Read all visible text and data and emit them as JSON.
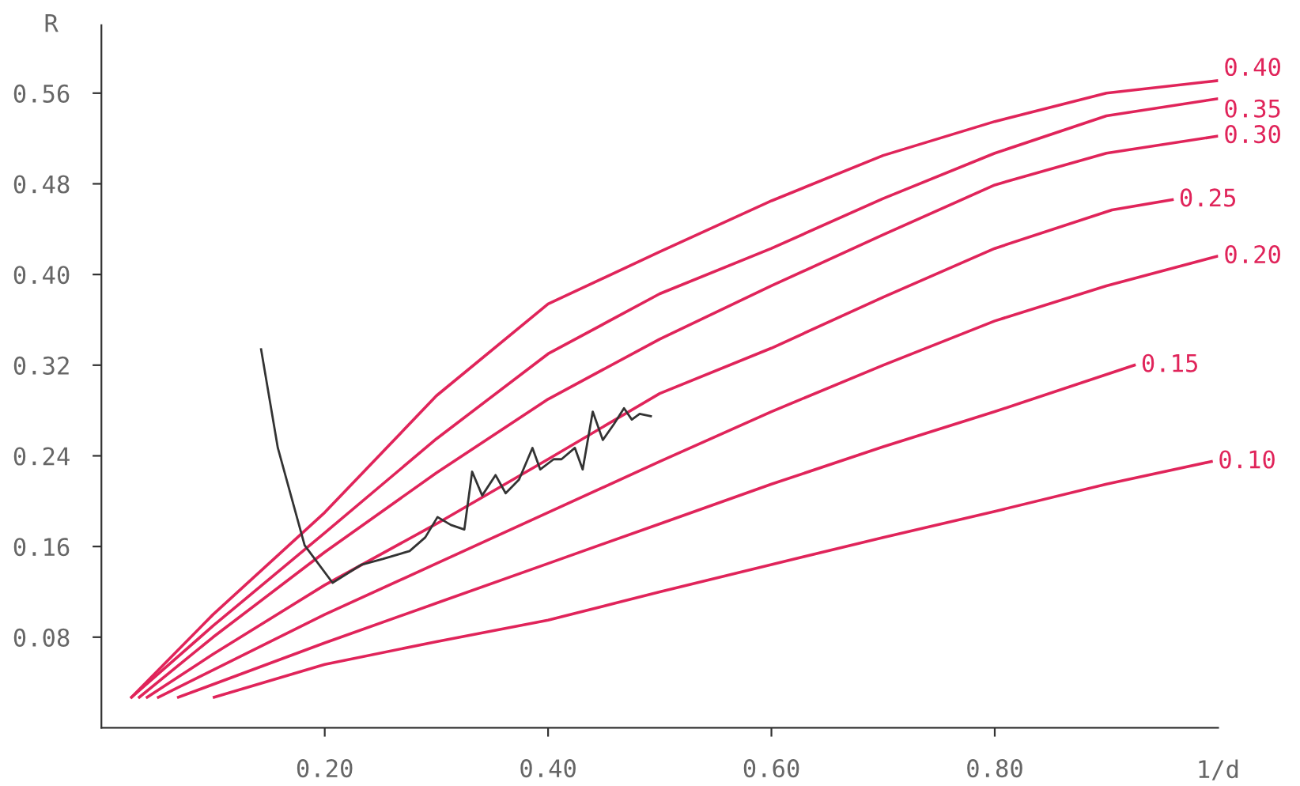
{
  "chart_data": {
    "type": "line",
    "xlabel": "1/d",
    "ylabel": "R",
    "xlim": [
      0,
      1.0
    ],
    "ylim": [
      0,
      0.62
    ],
    "xticks": [
      {
        "value": 0.2,
        "label": "0.20"
      },
      {
        "value": 0.4,
        "label": "0.40"
      },
      {
        "value": 0.6,
        "label": "0.60"
      },
      {
        "value": 0.8,
        "label": "0.80"
      }
    ],
    "yticks": [
      {
        "value": 0.08,
        "label": "0.08"
      },
      {
        "value": 0.16,
        "label": "0.16"
      },
      {
        "value": 0.24,
        "label": "0.24"
      },
      {
        "value": 0.32,
        "label": "0.32"
      },
      {
        "value": 0.4,
        "label": "0.40"
      },
      {
        "value": 0.48,
        "label": "0.48"
      },
      {
        "value": 0.56,
        "label": "0.56"
      }
    ],
    "grid": false,
    "legend": false,
    "marker": "none",
    "line_style": "solid",
    "series": [
      {
        "name": "0.40",
        "color": "#e0245a",
        "x": [
          0.027,
          0.1,
          0.2,
          0.3,
          0.4,
          0.5,
          0.6,
          0.7,
          0.8,
          0.9,
          0.999
        ],
        "values": [
          0.027,
          0.1,
          0.19,
          0.293,
          0.374,
          0.42,
          0.465,
          0.505,
          0.535,
          0.56,
          0.571
        ]
      },
      {
        "name": "0.35",
        "color": "#e0245a",
        "x": [
          0.027,
          0.1,
          0.2,
          0.3,
          0.4,
          0.5,
          0.6,
          0.7,
          0.8,
          0.9,
          0.999
        ],
        "values": [
          0.027,
          0.09,
          0.172,
          0.255,
          0.33,
          0.383,
          0.423,
          0.467,
          0.507,
          0.54,
          0.555
        ]
      },
      {
        "name": "0.30",
        "color": "#e0245a",
        "x": [
          0.034,
          0.1,
          0.2,
          0.3,
          0.4,
          0.5,
          0.6,
          0.7,
          0.8,
          0.9,
          0.999
        ],
        "values": [
          0.027,
          0.08,
          0.155,
          0.225,
          0.29,
          0.343,
          0.39,
          0.435,
          0.479,
          0.507,
          0.522
        ]
      },
      {
        "name": "0.25",
        "color": "#e0245a",
        "x": [
          0.041,
          0.1,
          0.2,
          0.3,
          0.4,
          0.5,
          0.6,
          0.7,
          0.8,
          0.905,
          0.959
        ],
        "values": [
          0.027,
          0.065,
          0.126,
          0.18,
          0.237,
          0.295,
          0.335,
          0.38,
          0.423,
          0.457,
          0.466
        ]
      },
      {
        "name": "0.20",
        "color": "#e0245a",
        "x": [
          0.051,
          0.2,
          0.3,
          0.4,
          0.5,
          0.6,
          0.7,
          0.8,
          0.9,
          0.999
        ],
        "values": [
          0.027,
          0.1,
          0.145,
          0.19,
          0.235,
          0.279,
          0.32,
          0.359,
          0.39,
          0.416
        ]
      },
      {
        "name": "0.15",
        "color": "#e0245a",
        "x": [
          0.069,
          0.2,
          0.3,
          0.4,
          0.5,
          0.6,
          0.7,
          0.8,
          0.925
        ],
        "values": [
          0.027,
          0.075,
          0.11,
          0.145,
          0.18,
          0.215,
          0.248,
          0.279,
          0.32
        ]
      },
      {
        "name": "0.10",
        "color": "#e0245a",
        "x": [
          0.101,
          0.2,
          0.3,
          0.4,
          0.5,
          0.6,
          0.7,
          0.8,
          0.9,
          0.994
        ],
        "values": [
          0.027,
          0.056,
          0.076,
          0.095,
          0.12,
          0.144,
          0.168,
          0.191,
          0.215,
          0.235
        ]
      },
      {
        "color": "#333333",
        "x": [
          0.143,
          0.158,
          0.182,
          0.207,
          0.233,
          0.252,
          0.276,
          0.29,
          0.301,
          0.313,
          0.325,
          0.332,
          0.341,
          0.353,
          0.362,
          0.374,
          0.386,
          0.393,
          0.405,
          0.412,
          0.424,
          0.431,
          0.44,
          0.449,
          0.459,
          0.468,
          0.475,
          0.482,
          0.492
        ],
        "values": [
          0.334,
          0.247,
          0.161,
          0.128,
          0.144,
          0.149,
          0.156,
          0.168,
          0.186,
          0.179,
          0.175,
          0.226,
          0.205,
          0.223,
          0.207,
          0.219,
          0.247,
          0.228,
          0.237,
          0.237,
          0.247,
          0.228,
          0.279,
          0.254,
          0.268,
          0.282,
          0.272,
          0.277,
          0.275
        ]
      }
    ]
  }
}
